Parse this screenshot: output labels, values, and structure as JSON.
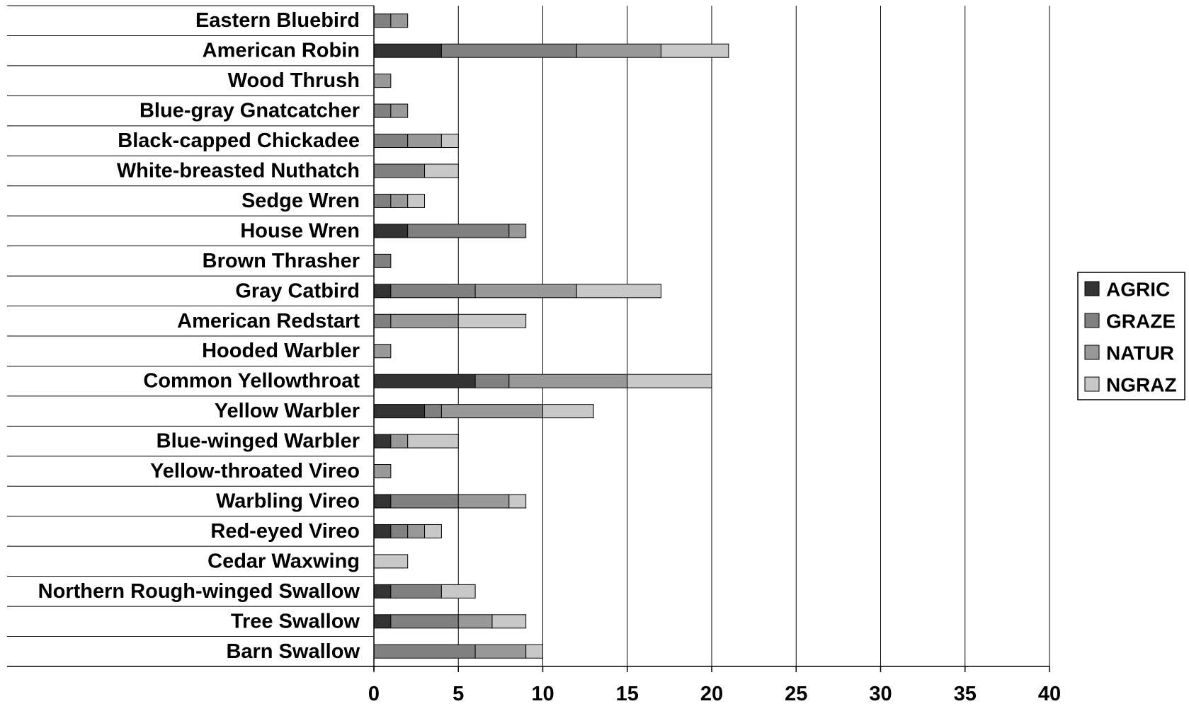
{
  "chart_data": {
    "type": "bar",
    "orientation": "horizontal",
    "stacked": true,
    "title": "",
    "xlabel": "",
    "ylabel": "",
    "xlim": [
      0,
      40
    ],
    "xticks": [
      0,
      5,
      10,
      15,
      20,
      25,
      30,
      35,
      40
    ],
    "grid": "vertical",
    "legend_position": "right",
    "categories": [
      "Eastern Bluebird",
      "American Robin",
      "Wood Thrush",
      "Blue-gray Gnatcatcher",
      "Black-capped Chickadee",
      "White-breasted Nuthatch",
      "Sedge Wren",
      "House Wren",
      "Brown Thrasher",
      "Gray Catbird",
      "American Redstart",
      "Hooded Warbler",
      "Common Yellowthroat",
      "Yellow Warbler",
      "Blue-winged Warbler",
      "Yellow-throated Vireo",
      "Warbling Vireo",
      "Red-eyed Vireo",
      "Cedar Waxwing",
      "Northern Rough-winged Swallow",
      "Tree Swallow",
      "Barn Swallow"
    ],
    "series": [
      {
        "name": "AGRIC",
        "color": "#333333",
        "values": [
          0,
          4,
          0,
          0,
          0,
          0,
          0,
          2,
          0,
          1,
          0,
          0,
          6,
          3,
          1,
          0,
          1,
          1,
          0,
          1,
          1,
          0
        ]
      },
      {
        "name": "GRAZE",
        "color": "#808080",
        "values": [
          1,
          8,
          0,
          1,
          2,
          3,
          1,
          6,
          1,
          5,
          1,
          0,
          2,
          1,
          0,
          0,
          4,
          1,
          0,
          3,
          4,
          6
        ]
      },
      {
        "name": "NATUR",
        "color": "#999999",
        "values": [
          1,
          5,
          1,
          1,
          2,
          0,
          1,
          1,
          0,
          6,
          4,
          1,
          7,
          6,
          1,
          1,
          3,
          1,
          0,
          0,
          2,
          3
        ]
      },
      {
        "name": "NGRAZ",
        "color": "#c8c8c8",
        "values": [
          0,
          4,
          0,
          0,
          1,
          2,
          1,
          0,
          0,
          5,
          4,
          0,
          5,
          3,
          3,
          0,
          1,
          1,
          2,
          2,
          2,
          1
        ]
      }
    ]
  }
}
